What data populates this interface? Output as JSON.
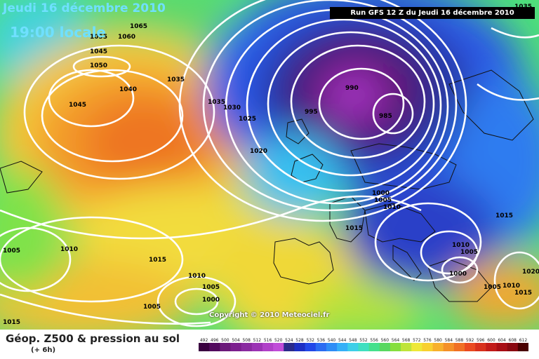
{
  "header": {
    "date": "Jeudi 16 décembre 2010",
    "local_time": "19:00 locale",
    "run": "Run GFS 12 Z du Jeudi 16 décembre 2010"
  },
  "copyright": "Copyright © 2010 Meteociel.fr",
  "footer": {
    "title": "Géop. Z500 & pression au sol",
    "subtitle": "(+ 6h)"
  },
  "isobar_labels": [
    "1065",
    "1055",
    "1060",
    "1045",
    "1050",
    "1040",
    "1045",
    "1035",
    "1035",
    "1030",
    "1025",
    "1020",
    "990",
    "995",
    "985",
    "1000",
    "1005",
    "1010",
    "1015",
    "1015",
    "1010",
    "1005",
    "1000",
    "1005",
    "1010",
    "1015",
    "1005",
    "1010",
    "1010",
    "1005",
    "1000",
    "1005",
    "1015",
    "1020",
    "1015",
    "1035"
  ],
  "scale": {
    "labels": [
      "492",
      "496",
      "500",
      "504",
      "508",
      "512",
      "516",
      "520",
      "524",
      "528",
      "532",
      "536",
      "540",
      "544",
      "548",
      "552",
      "556",
      "560",
      "564",
      "568",
      "572",
      "576",
      "580",
      "584",
      "588",
      "592",
      "596",
      "600",
      "604",
      "608",
      "612"
    ],
    "colors": [
      "#3a0040",
      "#520a5e",
      "#6b1a7a",
      "#7c1f8e",
      "#8a2aa0",
      "#9b33b4",
      "#b040c8",
      "#c04cd8",
      "#2a2a8a",
      "#1d2fc4",
      "#2248e8",
      "#2b6cf2",
      "#2e8df6",
      "#35b0f7",
      "#3dcfe8",
      "#3fdfc0",
      "#45e08c",
      "#58d860",
      "#86de3e",
      "#bfe43a",
      "#eee838",
      "#f8d030",
      "#f7b02c",
      "#f49028",
      "#f07024",
      "#ea4a20",
      "#d8301c",
      "#c21a18",
      "#a80d14",
      "#8a0810",
      "#4a0000"
    ]
  }
}
